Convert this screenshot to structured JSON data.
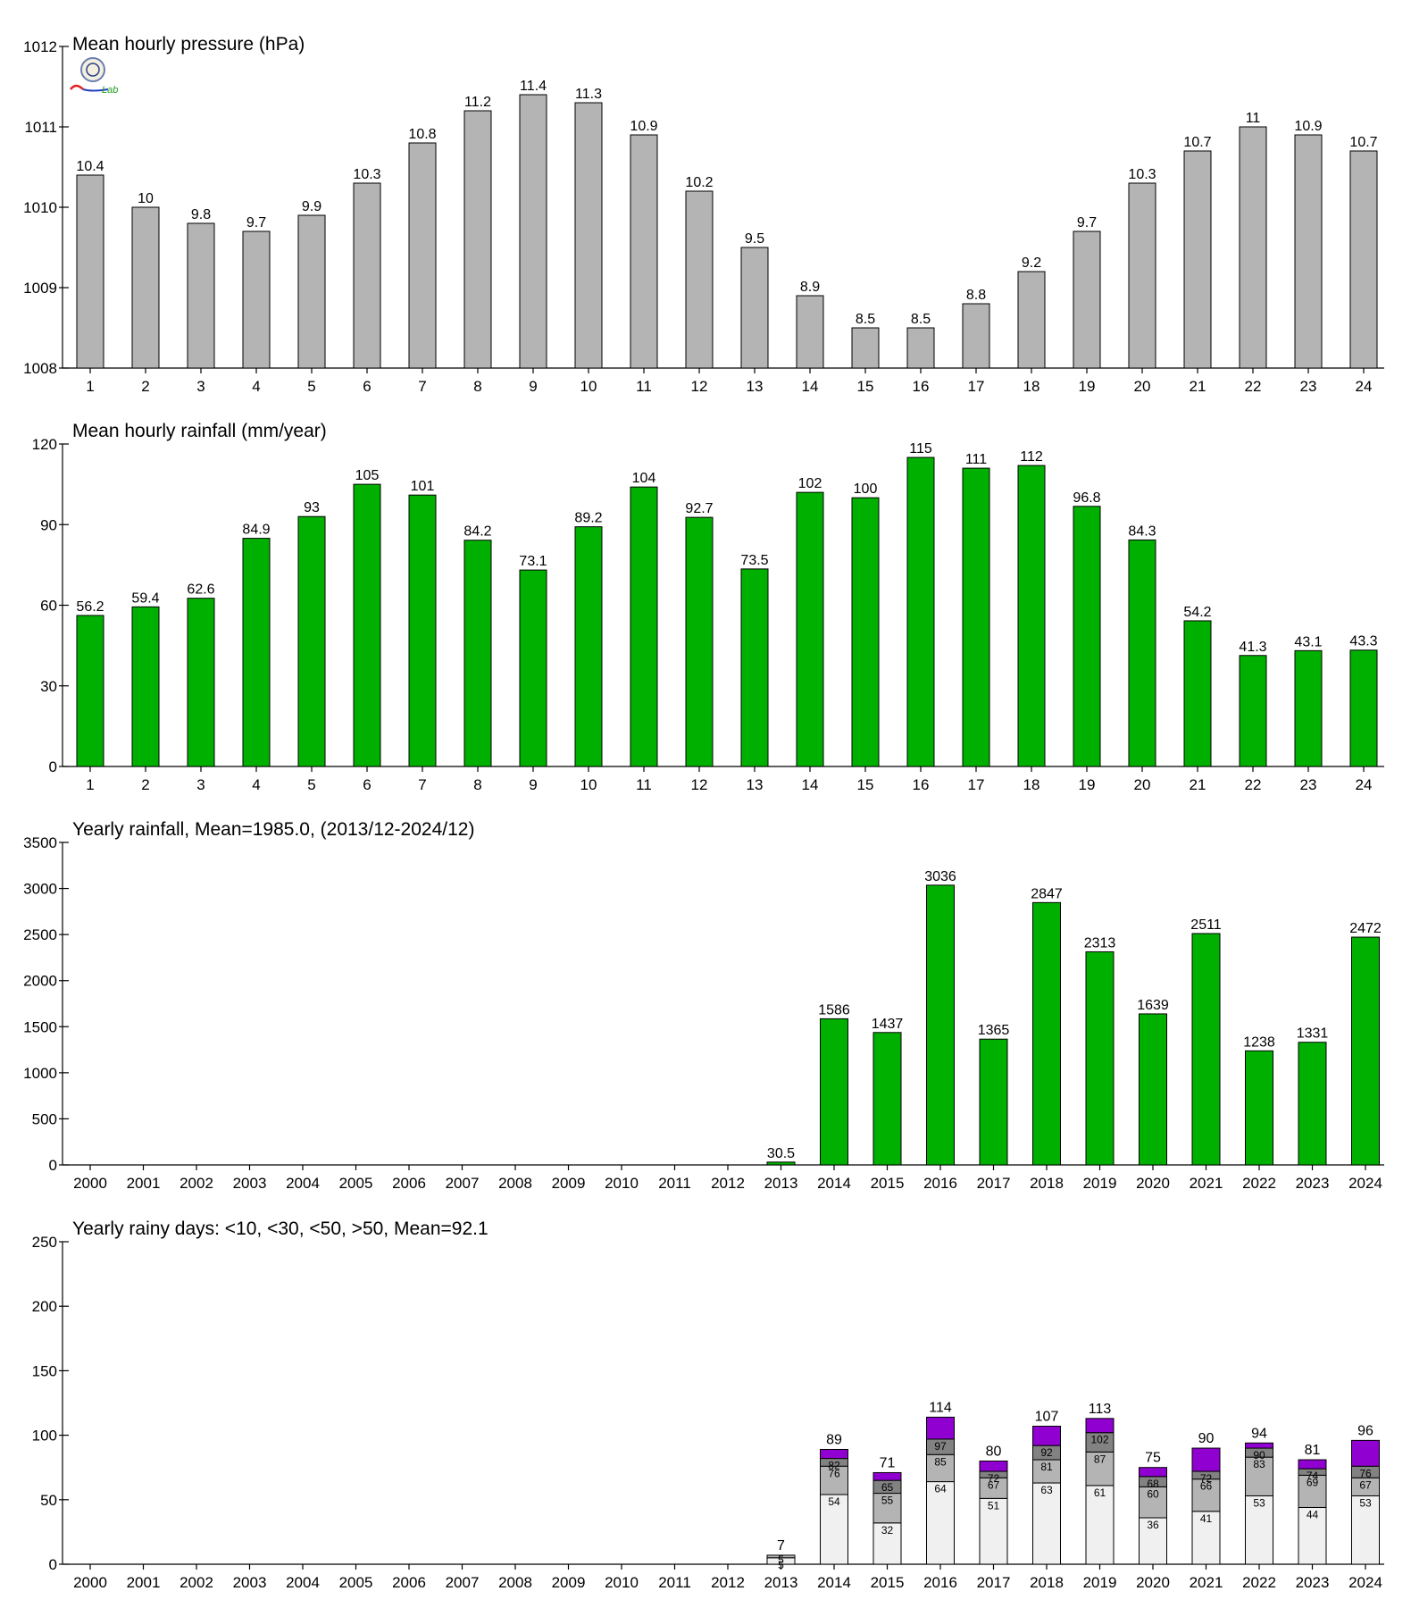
{
  "logo": {
    "text": "Lab"
  },
  "colors": {
    "pressure_bar": "#b4b4b4",
    "rain_bar": "#00b000",
    "rainy_lt10": "#f0f0f0",
    "rainy_lt30": "#b4b4b4",
    "rainy_lt50": "#828282",
    "rainy_gt50": "#9000d0"
  },
  "chart_data": [
    {
      "id": "pressure",
      "type": "bar",
      "title": "Mean hourly pressure (hPa)",
      "categories": [
        "1",
        "2",
        "3",
        "4",
        "5",
        "6",
        "7",
        "8",
        "9",
        "10",
        "11",
        "12",
        "13",
        "14",
        "15",
        "16",
        "17",
        "18",
        "19",
        "20",
        "21",
        "22",
        "23",
        "24"
      ],
      "values": [
        1010.4,
        1010.0,
        1009.8,
        1009.7,
        1009.9,
        1010.3,
        1010.8,
        1011.2,
        1011.4,
        1011.3,
        1010.9,
        1010.2,
        1009.5,
        1008.9,
        1008.5,
        1008.5,
        1008.8,
        1009.2,
        1009.7,
        1010.3,
        1010.7,
        1011.0,
        1010.9,
        1010.7
      ],
      "labels": [
        "10.4",
        "10",
        "9.8",
        "9.7",
        "9.9",
        "10.3",
        "10.8",
        "11.2",
        "11.4",
        "11.3",
        "10.9",
        "10.2",
        "9.5",
        "8.9",
        "8.5",
        "8.5",
        "8.8",
        "9.2",
        "9.7",
        "10.3",
        "10.7",
        "11",
        "10.9",
        "10.7"
      ],
      "ylim": [
        1008,
        1012
      ],
      "yticks": [
        "1008",
        "1009",
        "1010",
        "1011",
        "1012"
      ]
    },
    {
      "id": "hourly_rain",
      "type": "bar",
      "title": "Mean hourly rainfall (mm/year)",
      "categories": [
        "1",
        "2",
        "3",
        "4",
        "5",
        "6",
        "7",
        "8",
        "9",
        "10",
        "11",
        "12",
        "13",
        "14",
        "15",
        "16",
        "17",
        "18",
        "19",
        "20",
        "21",
        "22",
        "23",
        "24"
      ],
      "values": [
        56.2,
        59.4,
        62.6,
        84.9,
        93,
        105,
        101,
        84.2,
        73.1,
        89.2,
        104,
        92.7,
        73.5,
        102,
        100,
        115,
        111,
        112,
        96.8,
        84.3,
        54.2,
        41.3,
        43.1,
        43.3
      ],
      "labels": [
        "56.2",
        "59.4",
        "62.6",
        "84.9",
        "93",
        "105",
        "101",
        "84.2",
        "73.1",
        "89.2",
        "104",
        "92.7",
        "73.5",
        "102",
        "100",
        "115",
        "111",
        "112",
        "96.8",
        "84.3",
        "54.2",
        "41.3",
        "43.1",
        "43.3"
      ],
      "ylim": [
        0,
        120
      ],
      "yticks": [
        "0",
        "30",
        "60",
        "90",
        "120"
      ]
    },
    {
      "id": "yearly_rain",
      "type": "bar",
      "title": "Yearly rainfall, Mean=1985.0, (2013/12-2024/12)",
      "categories": [
        "2000",
        "2001",
        "2002",
        "2003",
        "2004",
        "2005",
        "2006",
        "2007",
        "2008",
        "2009",
        "2010",
        "2011",
        "2012",
        "2013",
        "2014",
        "2015",
        "2016",
        "2017",
        "2018",
        "2019",
        "2020",
        "2021",
        "2022",
        "2023",
        "2024"
      ],
      "values": [
        null,
        null,
        null,
        null,
        null,
        null,
        null,
        null,
        null,
        null,
        null,
        null,
        null,
        30.5,
        1586,
        1437,
        3036,
        1365,
        2847,
        2313,
        1639,
        2511,
        1238,
        1331,
        2472
      ],
      "labels": [
        "",
        "",
        "",
        "",
        "",
        "",
        "",
        "",
        "",
        "",
        "",
        "",
        "",
        "30.5",
        "1586",
        "1437",
        "3036",
        "1365",
        "2847",
        "2313",
        "1639",
        "2511",
        "1238",
        "1331",
        "2472"
      ],
      "ylim": [
        0,
        3500
      ],
      "yticks": [
        "0",
        "500",
        "1000",
        "1500",
        "2000",
        "2500",
        "3000",
        "3500"
      ]
    },
    {
      "id": "rainy_days",
      "type": "bar",
      "stacked": true,
      "title": "Yearly rainy days: <10, <30, <50, >50, Mean=92.1",
      "categories": [
        "2000",
        "2001",
        "2002",
        "2003",
        "2004",
        "2005",
        "2006",
        "2007",
        "2008",
        "2009",
        "2010",
        "2011",
        "2012",
        "2013",
        "2014",
        "2015",
        "2016",
        "2017",
        "2018",
        "2019",
        "2020",
        "2021",
        "2022",
        "2023",
        "2024"
      ],
      "cumulative": {
        "lt10": [
          null,
          null,
          null,
          null,
          null,
          null,
          null,
          null,
          null,
          null,
          null,
          null,
          null,
          5,
          54,
          32,
          64,
          51,
          63,
          61,
          36,
          41,
          53,
          44,
          53
        ],
        "lt30": [
          null,
          null,
          null,
          null,
          null,
          null,
          null,
          null,
          null,
          null,
          null,
          null,
          null,
          7,
          76,
          55,
          85,
          67,
          81,
          87,
          60,
          66,
          83,
          69,
          67
        ],
        "lt50": [
          null,
          null,
          null,
          null,
          null,
          null,
          null,
          null,
          null,
          null,
          null,
          null,
          null,
          7,
          82,
          65,
          97,
          72,
          92,
          102,
          68,
          72,
          90,
          74,
          76
        ],
        "total": [
          null,
          null,
          null,
          null,
          null,
          null,
          null,
          null,
          null,
          null,
          null,
          null,
          null,
          7,
          89,
          71,
          114,
          80,
          107,
          113,
          75,
          90,
          94,
          81,
          96
        ]
      },
      "ylim": [
        0,
        250
      ],
      "yticks": [
        "0",
        "50",
        "100",
        "150",
        "200",
        "250"
      ]
    }
  ]
}
